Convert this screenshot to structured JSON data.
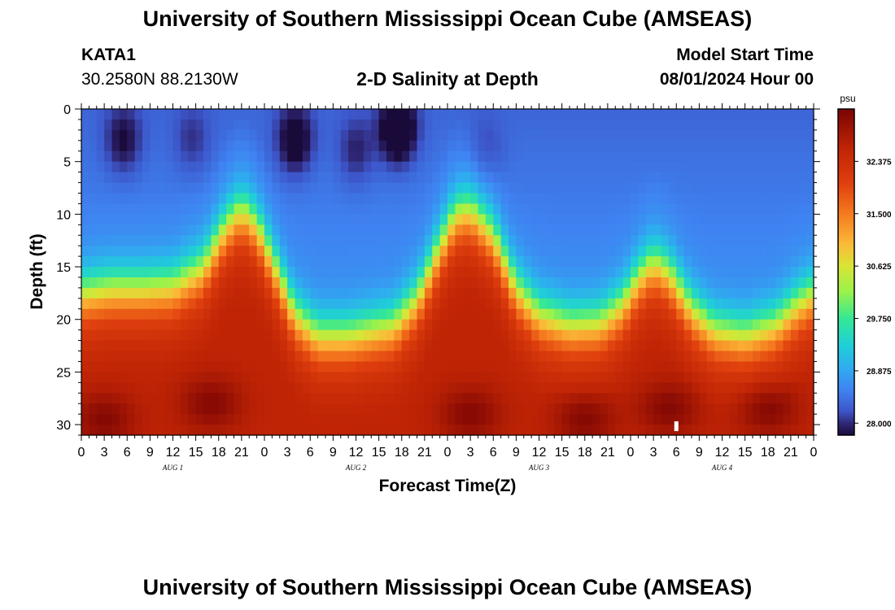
{
  "header": {
    "title": "University of Southern Mississippi Ocean Cube (AMSEAS)",
    "station": "KATA1",
    "coords": "30.2580N  88.2130W",
    "subtitle": "2-D Salinity at Depth",
    "start_label": "Model Start Time",
    "start_value": "08/01/2024 Hour 00",
    "footer_title": "University of Southern Mississippi Ocean Cube (AMSEAS)"
  },
  "chart_data": {
    "type": "heatmap",
    "title": "2-D Salinity at Depth",
    "xlabel": "Forecast Time(Z)",
    "ylabel": "Depth (ft)",
    "x_range_hours": [
      0,
      96
    ],
    "x_step_hours": 1,
    "x_ticks": [
      0,
      3,
      6,
      9,
      12,
      15,
      18,
      21,
      24,
      27,
      30,
      33,
      36,
      39,
      42,
      45,
      48,
      51,
      54,
      57,
      60,
      63,
      66,
      69,
      72,
      75,
      78,
      81,
      84,
      87,
      90,
      93,
      96
    ],
    "x_tick_labels": [
      "0",
      "3",
      "6",
      "9",
      "12",
      "15",
      "18",
      "21",
      "0",
      "3",
      "6",
      "9",
      "12",
      "15",
      "18",
      "21",
      "0",
      "3",
      "6",
      "9",
      "12",
      "15",
      "18",
      "21",
      "0",
      "3",
      "6",
      "9",
      "12",
      "15",
      "18",
      "21",
      "0"
    ],
    "date_labels": [
      {
        "hour": 12,
        "label": "AUG 1"
      },
      {
        "hour": 36,
        "label": "AUG 2"
      },
      {
        "hour": 60,
        "label": "AUG 3"
      },
      {
        "hour": 84,
        "label": "AUG 4"
      }
    ],
    "y_range_ft": [
      0,
      31
    ],
    "y_step_ft": 1,
    "y_ticks": [
      0,
      5,
      10,
      15,
      20,
      25,
      30
    ],
    "y_tick_labels": [
      "0",
      "5",
      "10",
      "15",
      "20",
      "25",
      "30"
    ],
    "halocline_depth_ft": [
      [
        0,
        17.5
      ],
      [
        4,
        17
      ],
      [
        8,
        17
      ],
      [
        12,
        16.8
      ],
      [
        16,
        15
      ],
      [
        19,
        11
      ],
      [
        21,
        9.5
      ],
      [
        23,
        11
      ],
      [
        26,
        16
      ],
      [
        28,
        19.5
      ],
      [
        31,
        21.5
      ],
      [
        35,
        21.5
      ],
      [
        38,
        21
      ],
      [
        41,
        20.5
      ],
      [
        44,
        18
      ],
      [
        47,
        13
      ],
      [
        49,
        10
      ],
      [
        51,
        9.5
      ],
      [
        54,
        12
      ],
      [
        57,
        17
      ],
      [
        60,
        19.5
      ],
      [
        64,
        20.5
      ],
      [
        68,
        20.3
      ],
      [
        71,
        18.5
      ],
      [
        73,
        16
      ],
      [
        75,
        14.5
      ],
      [
        77,
        15.5
      ],
      [
        80,
        19
      ],
      [
        83,
        21
      ],
      [
        87,
        21.5
      ],
      [
        91,
        20.5
      ],
      [
        94,
        18.5
      ],
      [
        96,
        17.5
      ]
    ],
    "surface_fresh_spots": [
      {
        "hour": 5.5,
        "depth_ft": 3,
        "strength": 0.6
      },
      {
        "hour": 14.5,
        "depth_ft": 3,
        "strength": 0.35
      },
      {
        "hour": 28,
        "depth_ft": 3,
        "strength": 0.8
      },
      {
        "hour": 36,
        "depth_ft": 4,
        "strength": 0.45
      },
      {
        "hour": 41.5,
        "depth_ft": 2,
        "strength": 1.1
      },
      {
        "hour": 53,
        "depth_ft": 4,
        "strength": 0.25
      }
    ],
    "bottom_salty_spots": [
      {
        "hour": 3,
        "depth_ft": 29.5
      },
      {
        "hour": 17,
        "depth_ft": 28
      },
      {
        "hour": 51,
        "depth_ft": 29
      },
      {
        "hour": 66,
        "depth_ft": 29.5
      },
      {
        "hour": 77,
        "depth_ft": 28.5
      },
      {
        "hour": 90,
        "depth_ft": 28.5
      }
    ],
    "missing_cell": {
      "hour": 78,
      "depth_ft": 30
    },
    "colorbar": {
      "unit": "psu",
      "min": 27.8,
      "max": 33.25,
      "tick_values": [
        28.0,
        28.875,
        29.75,
        30.625,
        31.5,
        32.375
      ],
      "tick_labels": [
        "28.000",
        "28.875",
        "29.750",
        "30.625",
        "31.500",
        "32.375"
      ],
      "stops": [
        {
          "v": 27.8,
          "c": "#1a0a3a"
        },
        {
          "v": 28.0,
          "c": "#302878"
        },
        {
          "v": 28.2,
          "c": "#3c55c8"
        },
        {
          "v": 28.55,
          "c": "#3f83f2"
        },
        {
          "v": 28.9,
          "c": "#30aaf0"
        },
        {
          "v": 29.3,
          "c": "#1fcfd8"
        },
        {
          "v": 29.75,
          "c": "#35e895"
        },
        {
          "v": 30.2,
          "c": "#9bf24a"
        },
        {
          "v": 30.625,
          "c": "#d8e536"
        },
        {
          "v": 31.0,
          "c": "#fbb937"
        },
        {
          "v": 31.5,
          "c": "#f57a1f"
        },
        {
          "v": 32.0,
          "c": "#e0400e"
        },
        {
          "v": 32.6,
          "c": "#bf2405"
        },
        {
          "v": 33.25,
          "c": "#7a0403"
        }
      ]
    }
  }
}
